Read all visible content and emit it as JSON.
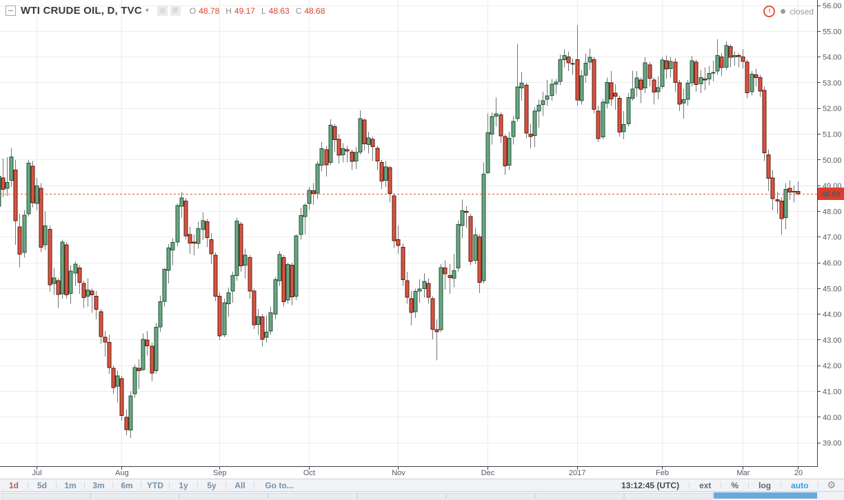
{
  "legend": {
    "title": "WTI CRUDE OIL, D, TVC",
    "ohlc": [
      {
        "k": "O",
        "v": "48.78"
      },
      {
        "k": "H",
        "v": "49.17"
      },
      {
        "k": "L",
        "v": "48.63"
      },
      {
        "k": "C",
        "v": "48.68"
      }
    ]
  },
  "icons": {
    "dropdown": "▾",
    "snapshot": "◎",
    "settings": "⚙",
    "alert": "!",
    "gear": "⚙"
  },
  "status": {
    "text": "closed"
  },
  "toolbar": {
    "ranges": [
      "1d",
      "5d",
      "1m",
      "3m",
      "6m",
      "YTD",
      "1y",
      "5y",
      "All",
      "Go to..."
    ],
    "active_range": "1d",
    "clock": "13:12:45 (UTC)",
    "tools": [
      "ext",
      "%",
      "log",
      "auto"
    ],
    "highlighted_tool": "auto"
  },
  "chart_data": {
    "type": "candlestick",
    "symbol": "WTI CRUDE OIL",
    "interval": "D",
    "exchange": "TVC",
    "last_price": 48.68,
    "last_price_label": "48.68",
    "price_axis": {
      "min_label": 39,
      "max_label": 56,
      "step": 1,
      "format": "0.00"
    },
    "time_ticks": [
      {
        "label": "Jul",
        "index": 9
      },
      {
        "label": "Aug",
        "index": 29
      },
      {
        "label": "Sep",
        "index": 52
      },
      {
        "label": "Oct",
        "index": 73
      },
      {
        "label": "Nov",
        "index": 94
      },
      {
        "label": "Dec",
        "index": 115
      },
      {
        "label": "2017",
        "index": 136
      },
      {
        "label": "Feb",
        "index": 156
      },
      {
        "label": "Mar",
        "index": 175
      },
      {
        "label": "20",
        "index": 188
      }
    ],
    "colors": {
      "up": "#6ba583",
      "up_border": "#225437",
      "down": "#d75442",
      "down_border": "#5b1a13",
      "wick": "#737375",
      "grid": "#ececef",
      "axis": "#3a3e44",
      "axis_label": "#55585d",
      "last_price": "#dc3e2e"
    },
    "candles": [
      [
        48.2,
        49.62,
        47.98,
        49.37
      ],
      [
        49.3,
        50.05,
        48.55,
        48.85
      ],
      [
        48.9,
        50.1,
        48.6,
        49.13
      ],
      [
        49.2,
        50.45,
        48.95,
        50.11
      ],
      [
        49.6,
        50.0,
        46.7,
        47.64
      ],
      [
        47.4,
        47.9,
        45.83,
        46.33
      ],
      [
        46.4,
        48.05,
        46.2,
        47.85
      ],
      [
        47.9,
        50.0,
        47.8,
        49.88
      ],
      [
        49.75,
        49.95,
        48.15,
        48.33
      ],
      [
        48.3,
        49.3,
        48.05,
        48.99
      ],
      [
        48.9,
        49.1,
        46.42,
        46.6
      ],
      [
        46.7,
        48.0,
        46.5,
        47.43
      ],
      [
        47.3,
        47.45,
        44.87,
        45.14
      ],
      [
        45.2,
        45.8,
        44.75,
        45.41
      ],
      [
        45.3,
        45.4,
        44.25,
        44.76
      ],
      [
        44.8,
        46.9,
        44.6,
        46.8
      ],
      [
        46.7,
        46.8,
        44.6,
        44.75
      ],
      [
        44.8,
        45.9,
        44.4,
        45.68
      ],
      [
        45.6,
        46.05,
        45.1,
        45.95
      ],
      [
        45.8,
        45.9,
        44.8,
        45.24
      ],
      [
        45.2,
        45.3,
        44.25,
        44.65
      ],
      [
        44.7,
        45.4,
        44.3,
        44.94
      ],
      [
        44.9,
        45.0,
        44.05,
        44.75
      ],
      [
        44.7,
        44.9,
        43.8,
        44.19
      ],
      [
        44.1,
        44.2,
        42.85,
        43.13
      ],
      [
        43.1,
        43.35,
        42.36,
        42.92
      ],
      [
        42.9,
        43.2,
        41.68,
        41.92
      ],
      [
        41.9,
        42.0,
        40.91,
        41.14
      ],
      [
        41.2,
        41.8,
        40.57,
        41.6
      ],
      [
        41.5,
        41.6,
        39.86,
        40.06
      ],
      [
        40.0,
        40.3,
        39.3,
        39.51
      ],
      [
        39.5,
        41.0,
        39.19,
        40.83
      ],
      [
        40.9,
        42.05,
        40.75,
        41.93
      ],
      [
        41.9,
        42.25,
        41.1,
        41.8
      ],
      [
        41.85,
        43.25,
        41.8,
        43.02
      ],
      [
        43.0,
        43.35,
        42.4,
        42.77
      ],
      [
        42.75,
        42.9,
        41.4,
        41.71
      ],
      [
        41.8,
        43.65,
        41.7,
        43.49
      ],
      [
        43.5,
        44.72,
        43.3,
        44.49
      ],
      [
        44.5,
        45.8,
        44.3,
        45.74
      ],
      [
        45.7,
        46.73,
        45.2,
        46.58
      ],
      [
        46.5,
        46.95,
        45.9,
        46.79
      ],
      [
        46.8,
        48.3,
        46.65,
        48.22
      ],
      [
        48.2,
        48.75,
        47.75,
        48.52
      ],
      [
        48.4,
        48.52,
        46.9,
        47.05
      ],
      [
        47.1,
        47.4,
        46.35,
        46.77
      ],
      [
        46.8,
        47.1,
        46.28,
        46.77
      ],
      [
        46.75,
        47.6,
        46.55,
        47.33
      ],
      [
        47.3,
        47.96,
        46.9,
        47.64
      ],
      [
        47.6,
        47.7,
        46.6,
        46.98
      ],
      [
        46.9,
        47.15,
        45.95,
        46.35
      ],
      [
        46.3,
        46.4,
        44.51,
        44.7
      ],
      [
        44.7,
        44.85,
        43.0,
        43.16
      ],
      [
        43.2,
        44.6,
        43.1,
        44.44
      ],
      [
        44.4,
        45.04,
        43.9,
        44.83
      ],
      [
        44.9,
        45.65,
        44.45,
        45.5
      ],
      [
        45.5,
        47.75,
        45.3,
        47.62
      ],
      [
        47.5,
        47.6,
        45.65,
        45.88
      ],
      [
        45.9,
        46.55,
        45.4,
        46.29
      ],
      [
        46.2,
        46.3,
        44.6,
        44.9
      ],
      [
        44.9,
        45.0,
        43.42,
        43.58
      ],
      [
        43.6,
        44.2,
        43.2,
        43.91
      ],
      [
        43.9,
        44.0,
        42.74,
        43.03
      ],
      [
        43.1,
        43.95,
        42.9,
        43.3
      ],
      [
        43.35,
        44.3,
        43.2,
        44.05
      ],
      [
        44.0,
        45.45,
        43.8,
        45.34
      ],
      [
        45.3,
        46.45,
        45.1,
        46.32
      ],
      [
        46.2,
        46.3,
        44.3,
        44.48
      ],
      [
        44.55,
        46.0,
        44.4,
        45.93
      ],
      [
        45.9,
        46.0,
        44.35,
        44.67
      ],
      [
        44.7,
        47.1,
        44.55,
        47.05
      ],
      [
        47.1,
        48.15,
        46.9,
        47.83
      ],
      [
        47.8,
        48.3,
        47.1,
        48.24
      ],
      [
        48.3,
        48.95,
        48.05,
        48.81
      ],
      [
        48.8,
        49.1,
        48.25,
        48.69
      ],
      [
        48.7,
        49.95,
        48.5,
        49.83
      ],
      [
        49.8,
        50.7,
        49.55,
        50.44
      ],
      [
        50.4,
        50.55,
        49.35,
        49.81
      ],
      [
        49.9,
        51.58,
        49.8,
        51.35
      ],
      [
        51.3,
        51.4,
        50.3,
        50.79
      ],
      [
        50.8,
        51.0,
        49.85,
        50.18
      ],
      [
        50.2,
        50.65,
        49.9,
        50.44
      ],
      [
        50.4,
        50.55,
        49.9,
        50.35
      ],
      [
        50.3,
        50.4,
        49.6,
        49.94
      ],
      [
        49.95,
        50.5,
        49.65,
        50.29
      ],
      [
        50.3,
        51.93,
        50.2,
        51.6
      ],
      [
        51.55,
        51.6,
        50.35,
        50.63
      ],
      [
        50.6,
        51.1,
        50.25,
        50.85
      ],
      [
        50.8,
        50.9,
        49.95,
        50.52
      ],
      [
        50.45,
        50.55,
        49.6,
        49.96
      ],
      [
        49.9,
        50.0,
        48.87,
        49.18
      ],
      [
        49.2,
        49.95,
        48.95,
        49.72
      ],
      [
        49.7,
        49.75,
        48.35,
        48.7
      ],
      [
        48.6,
        48.7,
        46.58,
        46.86
      ],
      [
        46.9,
        47.45,
        46.35,
        46.67
      ],
      [
        46.6,
        46.75,
        45.1,
        45.34
      ],
      [
        45.3,
        45.65,
        44.4,
        44.66
      ],
      [
        44.6,
        44.9,
        43.57,
        44.07
      ],
      [
        44.1,
        45.0,
        43.85,
        44.89
      ],
      [
        44.9,
        45.35,
        44.45,
        44.98
      ],
      [
        45.0,
        45.6,
        44.65,
        45.27
      ],
      [
        45.2,
        45.4,
        44.4,
        44.66
      ],
      [
        44.6,
        44.7,
        43.03,
        43.41
      ],
      [
        43.4,
        43.8,
        42.2,
        43.32
      ],
      [
        43.4,
        45.95,
        43.3,
        45.81
      ],
      [
        45.8,
        46.1,
        44.95,
        45.57
      ],
      [
        45.5,
        45.95,
        44.8,
        45.42
      ],
      [
        45.4,
        46.35,
        45.05,
        45.69
      ],
      [
        45.8,
        47.65,
        45.65,
        47.49
      ],
      [
        47.45,
        48.45,
        46.95,
        48.03
      ],
      [
        48.0,
        48.2,
        47.35,
        47.96
      ],
      [
        47.8,
        47.9,
        45.9,
        46.06
      ],
      [
        46.1,
        47.35,
        45.95,
        47.08
      ],
      [
        47.0,
        47.1,
        44.82,
        45.23
      ],
      [
        45.3,
        49.9,
        45.2,
        49.44
      ],
      [
        49.5,
        51.8,
        49.45,
        51.06
      ],
      [
        51.0,
        51.85,
        50.6,
        51.68
      ],
      [
        51.7,
        52.42,
        51.3,
        51.79
      ],
      [
        51.75,
        51.85,
        50.65,
        50.93
      ],
      [
        50.9,
        51.0,
        49.42,
        49.77
      ],
      [
        49.8,
        51.1,
        49.6,
        50.84
      ],
      [
        50.9,
        51.7,
        50.6,
        51.5
      ],
      [
        51.6,
        54.51,
        51.5,
        52.83
      ],
      [
        52.8,
        53.41,
        52.3,
        52.98
      ],
      [
        52.9,
        53.0,
        50.84,
        51.04
      ],
      [
        51.0,
        51.4,
        50.45,
        50.9
      ],
      [
        50.95,
        52.05,
        50.5,
        51.9
      ],
      [
        51.9,
        52.35,
        51.25,
        52.12
      ],
      [
        52.15,
        52.65,
        51.7,
        52.3
      ],
      [
        52.35,
        53.1,
        52.1,
        52.49
      ],
      [
        52.5,
        53.15,
        52.3,
        52.95
      ],
      [
        52.95,
        53.15,
        52.55,
        53.02
      ],
      [
        53.05,
        54.1,
        52.9,
        53.9
      ],
      [
        53.9,
        54.3,
        53.6,
        54.06
      ],
      [
        54.0,
        54.2,
        53.45,
        53.77
      ],
      [
        53.75,
        53.95,
        53.3,
        53.72
      ],
      [
        53.9,
        55.24,
        52.11,
        52.33
      ],
      [
        52.3,
        53.49,
        52.15,
        53.26
      ],
      [
        53.3,
        54.12,
        53.0,
        53.76
      ],
      [
        53.8,
        54.32,
        53.5,
        53.99
      ],
      [
        53.9,
        54.0,
        51.8,
        51.96
      ],
      [
        51.9,
        52.1,
        50.71,
        50.82
      ],
      [
        50.9,
        52.37,
        50.8,
        52.25
      ],
      [
        52.2,
        53.2,
        52.0,
        53.01
      ],
      [
        53.0,
        53.45,
        52.1,
        52.37
      ],
      [
        52.6,
        52.95,
        51.95,
        52.48
      ],
      [
        52.4,
        52.5,
        50.91,
        51.08
      ],
      [
        51.1,
        51.9,
        50.8,
        51.37
      ],
      [
        51.4,
        52.6,
        51.3,
        52.42
      ],
      [
        52.4,
        53.46,
        52.3,
        52.75
      ],
      [
        52.8,
        53.45,
        52.45,
        53.18
      ],
      [
        53.1,
        53.2,
        52.2,
        52.75
      ],
      [
        52.8,
        53.99,
        52.6,
        53.78
      ],
      [
        53.7,
        53.8,
        52.85,
        53.17
      ],
      [
        53.1,
        53.2,
        52.15,
        52.63
      ],
      [
        52.65,
        53.25,
        52.35,
        52.81
      ],
      [
        52.85,
        54.0,
        52.75,
        53.88
      ],
      [
        53.85,
        54.05,
        53.15,
        53.54
      ],
      [
        53.55,
        54.0,
        53.2,
        53.83
      ],
      [
        53.8,
        53.95,
        52.65,
        53.01
      ],
      [
        53.0,
        53.1,
        51.9,
        52.17
      ],
      [
        52.2,
        52.75,
        51.6,
        52.34
      ],
      [
        52.35,
        53.1,
        52.1,
        52.99
      ],
      [
        53.0,
        54.04,
        52.85,
        53.86
      ],
      [
        53.8,
        53.9,
        52.65,
        52.93
      ],
      [
        52.95,
        53.5,
        52.6,
        53.2
      ],
      [
        53.15,
        53.6,
        52.7,
        53.11
      ],
      [
        53.15,
        53.65,
        52.9,
        53.36
      ],
      [
        53.4,
        53.85,
        53.05,
        53.4
      ],
      [
        53.45,
        54.68,
        53.3,
        54.06
      ],
      [
        54.0,
        54.15,
        53.25,
        53.59
      ],
      [
        53.6,
        54.6,
        53.5,
        54.45
      ],
      [
        54.4,
        54.49,
        53.6,
        53.99
      ],
      [
        54.0,
        54.2,
        53.65,
        54.05
      ],
      [
        54.05,
        54.15,
        53.6,
        54.01
      ],
      [
        54.0,
        54.3,
        53.55,
        53.83
      ],
      [
        53.8,
        53.9,
        52.4,
        52.61
      ],
      [
        52.65,
        53.45,
        52.5,
        53.33
      ],
      [
        53.3,
        53.55,
        52.85,
        53.2
      ],
      [
        53.2,
        53.3,
        52.45,
        52.68
      ],
      [
        52.7,
        52.85,
        49.95,
        50.28
      ],
      [
        50.2,
        50.4,
        48.79,
        49.28
      ],
      [
        49.3,
        49.6,
        48.05,
        48.49
      ],
      [
        48.45,
        48.75,
        47.9,
        48.4
      ],
      [
        48.4,
        48.55,
        47.09,
        47.72
      ],
      [
        47.75,
        49.1,
        47.3,
        48.86
      ],
      [
        48.9,
        49.2,
        48.45,
        48.75
      ],
      [
        48.75,
        49.0,
        48.35,
        48.78
      ],
      [
        48.78,
        49.17,
        48.63,
        48.68
      ]
    ]
  }
}
